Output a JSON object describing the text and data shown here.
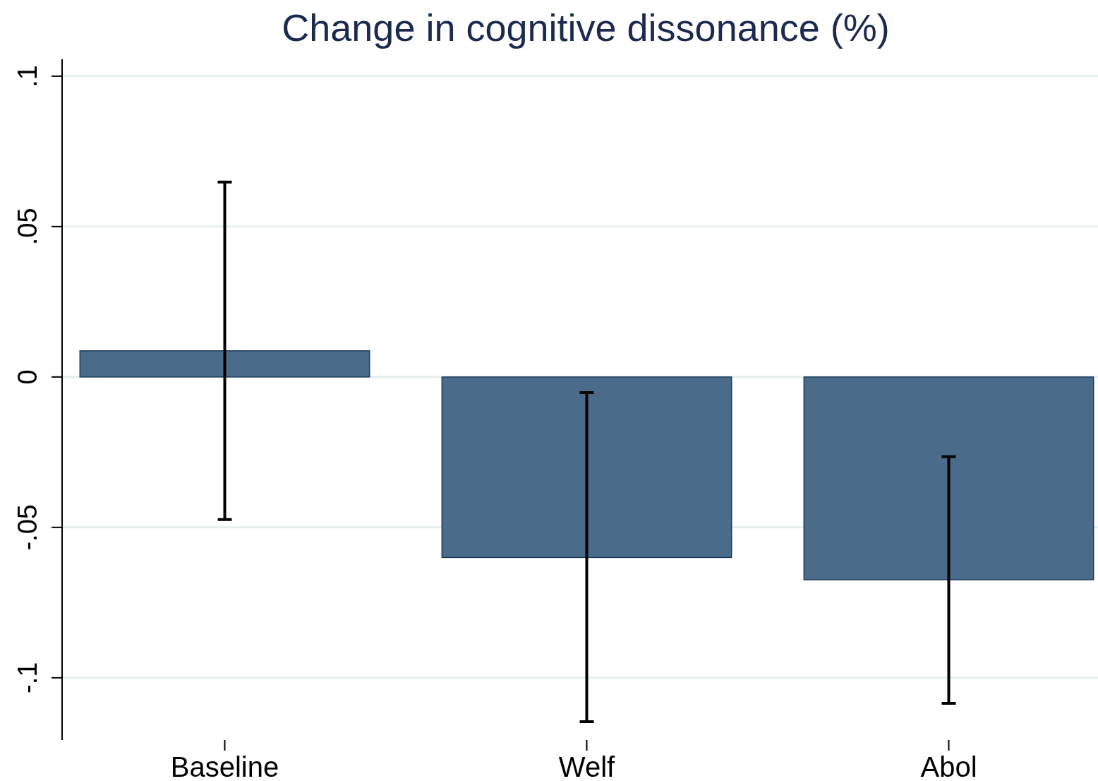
{
  "chart_data": {
    "type": "bar",
    "title": "Change in cognitive dissonance (%)",
    "categories": [
      "Baseline",
      "Welf",
      "Abol"
    ],
    "values": [
      0.0087,
      -0.06,
      -0.0674
    ],
    "errors": [
      [
        -0.0474,
        0.0648
      ],
      [
        -0.1146,
        -0.0052
      ],
      [
        -0.1085,
        -0.0265
      ]
    ],
    "color": "#4a6b8a",
    "ylim": [
      -0.1207,
      0.1056
    ],
    "yticks": [
      {
        "value": -0.1,
        "label": "-.1"
      },
      {
        "value": -0.05,
        "label": "-.05"
      },
      0,
      {
        "value": 0.05,
        "label": ".05"
      },
      {
        "value": 0.1,
        "label": ".1"
      }
    ],
    "grid": "y"
  }
}
